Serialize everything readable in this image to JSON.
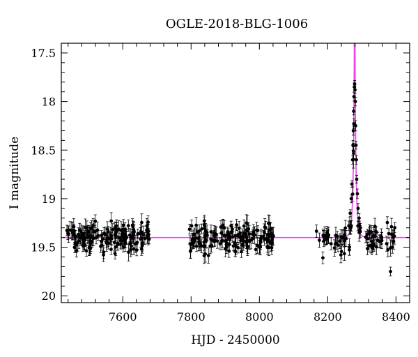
{
  "chart_data": {
    "type": "scatter",
    "title": "OGLE-2018-BLG-1006",
    "xlabel": "HJD - 2450000",
    "ylabel": "I magnitude",
    "xlim": [
      7420,
      8440
    ],
    "ylim": [
      20.07,
      17.4
    ],
    "y_inverted": true,
    "grid": false,
    "xticks": [
      7600,
      7800,
      8000,
      8200,
      8400
    ],
    "xtick_labels": [
      "7600",
      "7800",
      "8000",
      "8200",
      "8400"
    ],
    "yticks": [
      17.5,
      18,
      18.5,
      19,
      19.5,
      20
    ],
    "ytick_labels": [
      "17.5",
      "18",
      "18.5",
      "19",
      "19.5",
      "20"
    ],
    "seasons": [
      {
        "start": 7435,
        "end": 7680,
        "n": 170
      },
      {
        "start": 7795,
        "end": 8045,
        "n": 165
      },
      {
        "start": 8160,
        "end": 8400,
        "n": 95
      }
    ],
    "baseline_mag": 19.4,
    "scatter_sigma_mag": 0.07,
    "typical_error_mag": 0.07,
    "peak_points": [
      {
        "x": 8262,
        "y": 19.28
      },
      {
        "x": 8266,
        "y": 19.15
      },
      {
        "x": 8269,
        "y": 19.0
      },
      {
        "x": 8271,
        "y": 18.85
      },
      {
        "x": 8273,
        "y": 18.6
      },
      {
        "x": 8274,
        "y": 18.45
      },
      {
        "x": 8275,
        "y": 18.3
      },
      {
        "x": 8276,
        "y": 18.1
      },
      {
        "x": 8277,
        "y": 17.95
      },
      {
        "x": 8278,
        "y": 17.85
      },
      {
        "x": 8279,
        "y": 17.82
      },
      {
        "x": 8280,
        "y": 17.88
      },
      {
        "x": 8281,
        "y": 18.0
      },
      {
        "x": 8282,
        "y": 18.25
      },
      {
        "x": 8283,
        "y": 18.45
      },
      {
        "x": 8284,
        "y": 18.6
      },
      {
        "x": 8285,
        "y": 18.8
      },
      {
        "x": 8287,
        "y": 18.95
      },
      {
        "x": 8289,
        "y": 19.1
      },
      {
        "x": 8292,
        "y": 19.2
      },
      {
        "x": 8296,
        "y": 19.3
      },
      {
        "x": 8384,
        "y": 19.75
      }
    ],
    "series": [
      {
        "type": "line",
        "model": "microlensing",
        "t0": 8279,
        "u0": 0.06,
        "tE": 7,
        "I_base": 19.4,
        "color": "#ee44ee",
        "xrange": [
          7425,
          8440
        ]
      }
    ],
    "colors": {
      "points": "#000000",
      "model": "#ee44ee",
      "background": "#ffffff"
    }
  }
}
